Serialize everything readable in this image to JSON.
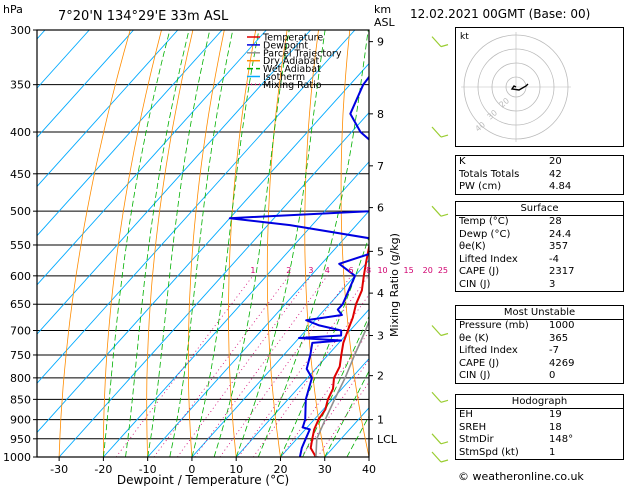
{
  "header": {
    "location": "7°20'N 134°29'E 33m ASL",
    "pressure_unit": "hPa",
    "height_unit": "km\nASL",
    "km_label": "km",
    "asl_label": "ASL",
    "date": "12.02.2021 00GMT (Base: 00)"
  },
  "legend": [
    "Temperature",
    "Dewpoint",
    "Parcel Trajectory",
    "Dry Adiabat",
    "Wet Adiabat",
    "Isotherm",
    "Mixing Ratio"
  ],
  "colors": {
    "temperature": "#e00000",
    "dewpoint": "#0000e0",
    "parcel": "#909090",
    "dry_adiabat": "#ff8c00",
    "wet_adiabat": "#00b000",
    "isotherm": "#00aaff",
    "mixing_ratio": "#d0006f"
  },
  "axes": {
    "xlabel": "Dewpoint / Temperature (°C)",
    "ylabel_right": "Mixing Ratio (g/kg)",
    "x_ticks": [
      "-30",
      "-20",
      "-10",
      "0",
      "10",
      "20",
      "30",
      "40"
    ],
    "p_ticks": [
      "300",
      "350",
      "400",
      "450",
      "500",
      "550",
      "600",
      "650",
      "700",
      "750",
      "800",
      "850",
      "900",
      "950",
      "1000"
    ],
    "km_ticks": [
      {
        "p": 310,
        "label": "9"
      },
      {
        "p": 380,
        "label": "8"
      },
      {
        "p": 440,
        "label": "7"
      },
      {
        "p": 495,
        "label": "6"
      },
      {
        "p": 560,
        "label": "5"
      },
      {
        "p": 630,
        "label": "4"
      },
      {
        "p": 710,
        "label": "3"
      },
      {
        "p": 795,
        "label": "2"
      },
      {
        "p": 900,
        "label": "1"
      },
      {
        "p": 950,
        "label": "LCL"
      }
    ],
    "mix_ticks": [
      "1",
      "2",
      "3",
      "4",
      "6",
      "8",
      "10",
      "15",
      "20",
      "25"
    ]
  },
  "chart_data": {
    "type": "line",
    "title": "",
    "xlim": [
      -35,
      40
    ],
    "plim": [
      300,
      1000
    ],
    "series": [
      {
        "name": "Temperature",
        "points": [
          [
            1000,
            28
          ],
          [
            975,
            25
          ],
          [
            950,
            23.5
          ],
          [
            925,
            22
          ],
          [
            900,
            21
          ],
          [
            875,
            20.5
          ],
          [
            850,
            19
          ],
          [
            825,
            18
          ],
          [
            800,
            16
          ],
          [
            775,
            15
          ],
          [
            750,
            13
          ],
          [
            725,
            11
          ],
          [
            700,
            9.5
          ],
          [
            675,
            8
          ],
          [
            650,
            6
          ],
          [
            625,
            4.5
          ],
          [
            600,
            2
          ],
          [
            575,
            -0.5
          ],
          [
            550,
            -3
          ],
          [
            525,
            -5.5
          ],
          [
            500,
            -8
          ],
          [
            475,
            -11
          ],
          [
            450,
            -13
          ],
          [
            425,
            -16
          ],
          [
            400,
            -19
          ],
          [
            375,
            -23
          ],
          [
            350,
            -26
          ],
          [
            325,
            -30
          ],
          [
            300,
            -35
          ]
        ]
      },
      {
        "name": "Dewpoint",
        "points": [
          [
            1000,
            24.4
          ],
          [
            975,
            23
          ],
          [
            950,
            22
          ],
          [
            925,
            21
          ],
          [
            920,
            19
          ],
          [
            900,
            18
          ],
          [
            850,
            14
          ],
          [
            800,
            11
          ],
          [
            780,
            8
          ],
          [
            750,
            6
          ],
          [
            725,
            4
          ],
          [
            720,
            10
          ],
          [
            715,
            0
          ],
          [
            710,
            9
          ],
          [
            700,
            8
          ],
          [
            690,
            2
          ],
          [
            680,
            -2
          ],
          [
            670,
            5
          ],
          [
            660,
            3
          ],
          [
            650,
            3
          ],
          [
            600,
            0
          ],
          [
            580,
            -6
          ],
          [
            560,
            0
          ],
          [
            540,
            -4
          ],
          [
            520,
            -25
          ],
          [
            510,
            -40
          ],
          [
            500,
            -10
          ],
          [
            460,
            -9
          ],
          [
            440,
            -12
          ],
          [
            420,
            -20
          ],
          [
            400,
            -28
          ],
          [
            380,
            -34
          ],
          [
            350,
            -37
          ],
          [
            320,
            -38
          ],
          [
            300,
            -40
          ]
        ]
      },
      {
        "name": "Parcel Trajectory",
        "points": [
          [
            1000,
            28
          ],
          [
            950,
            24.5
          ],
          [
            900,
            22.5
          ],
          [
            850,
            20.5
          ],
          [
            800,
            18.5
          ],
          [
            750,
            16
          ],
          [
            700,
            13.5
          ],
          [
            650,
            10.5
          ],
          [
            600,
            7.5
          ],
          [
            550,
            4
          ],
          [
            500,
            0
          ],
          [
            450,
            -5
          ],
          [
            400,
            -11
          ],
          [
            350,
            -18.5
          ],
          [
            300,
            -27
          ]
        ]
      }
    ]
  },
  "wind_barbs": [
    {
      "p": 310,
      "label": ""
    },
    {
      "p": 400,
      "label": ""
    },
    {
      "p": 500,
      "label": ""
    },
    {
      "p": 700,
      "label": ""
    },
    {
      "p": 845,
      "label": ""
    },
    {
      "p": 950,
      "label": ""
    },
    {
      "p": 1000,
      "label": ""
    }
  ],
  "hodograph": {
    "kt_label": "kt",
    "ring_labels": [
      "40",
      "30",
      "20"
    ]
  },
  "indices": [
    {
      "label": "K",
      "value": "20"
    },
    {
      "label": "Totals Totals",
      "value": "42"
    },
    {
      "label": "PW (cm)",
      "value": "4.84"
    }
  ],
  "surface": {
    "title": "Surface",
    "rows": [
      {
        "label": "Temp (°C)",
        "value": "28"
      },
      {
        "label": "Dewp (°C)",
        "value": "24.4"
      },
      {
        "label": "θe(K)",
        "value": "357"
      },
      {
        "label": "Lifted Index",
        "value": "-4"
      },
      {
        "label": "CAPE (J)",
        "value": "2317"
      },
      {
        "label": "CIN (J)",
        "value": "3"
      }
    ]
  },
  "most_unstable": {
    "title": "Most Unstable",
    "rows": [
      {
        "label": "Pressure (mb)",
        "value": "1000"
      },
      {
        "label": "θe (K)",
        "value": "365"
      },
      {
        "label": "Lifted Index",
        "value": "-7"
      },
      {
        "label": "CAPE (J)",
        "value": "4269"
      },
      {
        "label": "CIN (J)",
        "value": "0"
      }
    ]
  },
  "hodograph_table": {
    "title": "Hodograph",
    "rows": [
      {
        "label": "EH",
        "value": "19"
      },
      {
        "label": "SREH",
        "value": "18"
      },
      {
        "label": "StmDir",
        "value": "148°"
      },
      {
        "label": "StmSpd (kt)",
        "value": "1"
      }
    ]
  },
  "credit": "© weatheronline.co.uk"
}
